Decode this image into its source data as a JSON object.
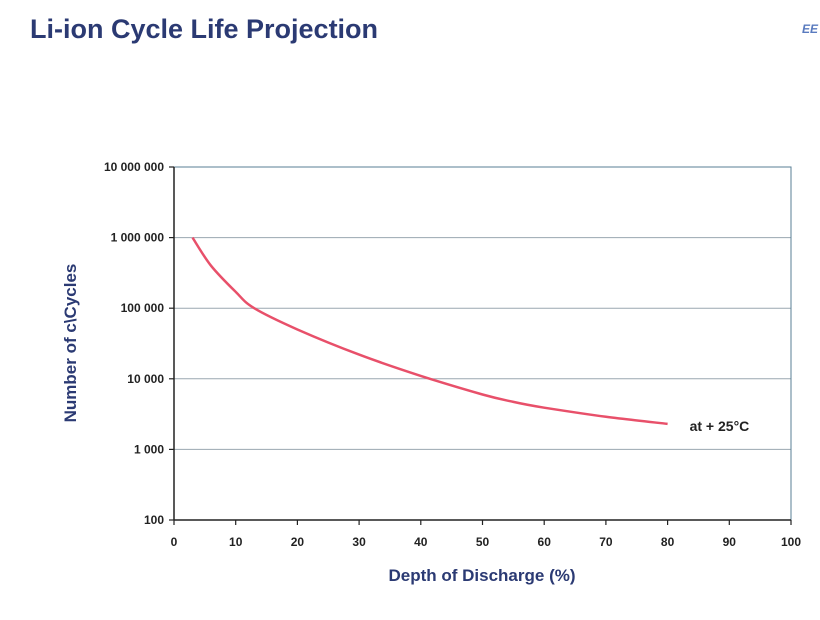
{
  "header": {
    "title": "Li-ion Cycle Life Projection",
    "corner_mark": "EE"
  },
  "chart_data": {
    "type": "line",
    "title": "Li-ion Cycle Life Projection",
    "xlabel": "Depth of Discharge (%)",
    "ylabel": "Number of c\\Cycles",
    "xlim": [
      0,
      100
    ],
    "ylim": [
      100,
      10000000
    ],
    "yscale": "log",
    "grid": "horizontal",
    "x_ticks": [
      0,
      10,
      20,
      30,
      40,
      50,
      60,
      70,
      80,
      90,
      100
    ],
    "x_tick_labels": [
      "0",
      "10",
      "20",
      "30",
      "40",
      "50",
      "60",
      "70",
      "80",
      "90",
      "100"
    ],
    "y_ticks": [
      100,
      1000,
      10000,
      100000,
      1000000,
      10000000
    ],
    "y_tick_labels": [
      "100",
      "1 000",
      "10 000",
      "100 000",
      "1 000 000",
      "10 000 000"
    ],
    "series": [
      {
        "name": "at + 25°C",
        "color": "#e8506a",
        "x": [
          3,
          6,
          10,
          13,
          20,
          30,
          40,
          50,
          55,
          60,
          70,
          80
        ],
        "y": [
          1000000,
          400000,
          170000,
          100000,
          50000,
          22000,
          11000,
          6000,
          4700,
          3900,
          2900,
          2300
        ]
      }
    ]
  }
}
